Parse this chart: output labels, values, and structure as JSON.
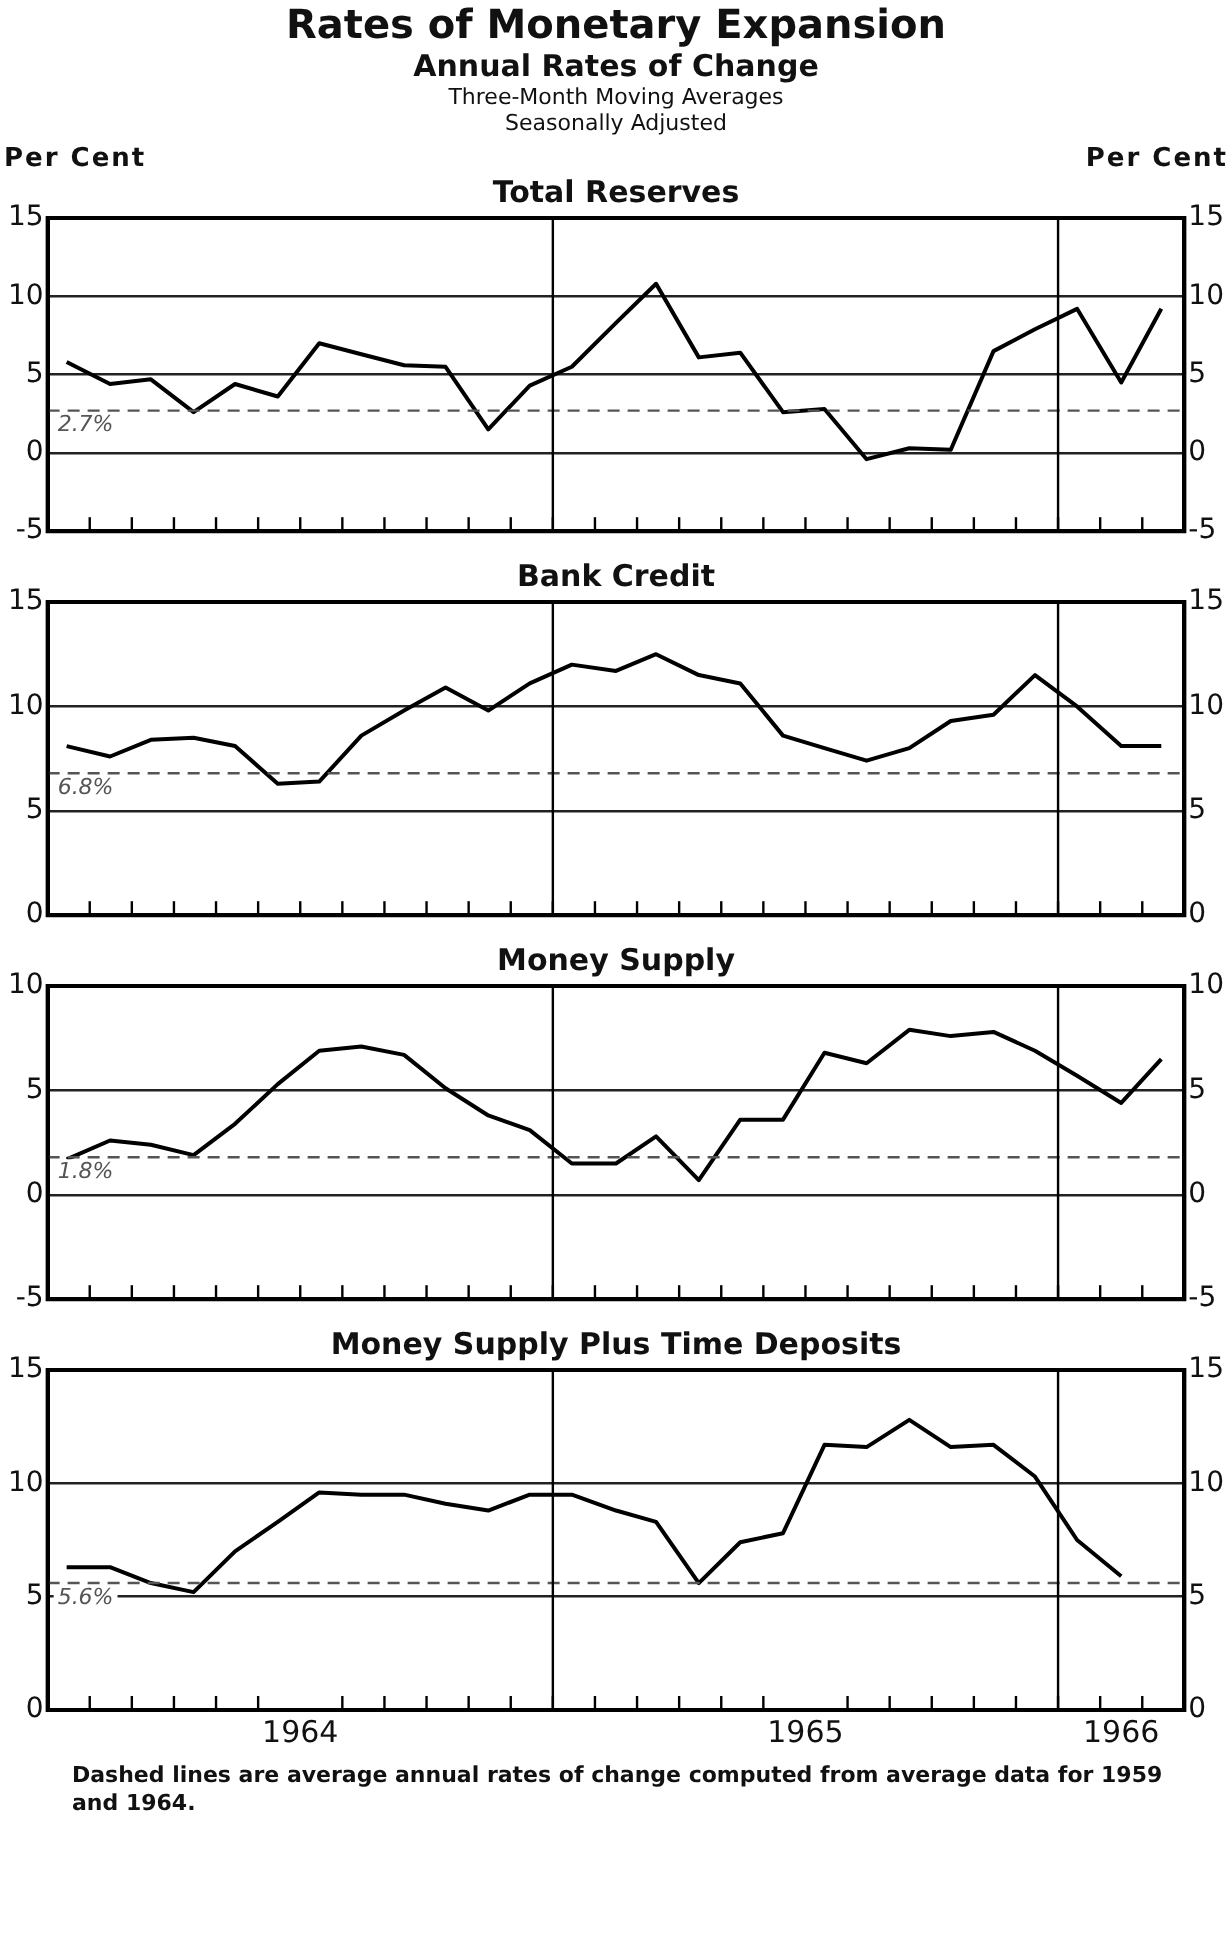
{
  "chart_data": [
    {
      "type": "other",
      "title": "Rates of Monetary Expansion",
      "subtitle": "Annual Rates of Change",
      "annotations": [
        "Three-Month Moving Averages",
        "Seasonally Adjusted"
      ]
    },
    {
      "type": "line",
      "title": "Total Reserves",
      "ylabel": "Per Cent",
      "y2label": "Per Cent",
      "x": [
        "1964-01-15",
        "1964-02-15",
        "1964-03-15",
        "1964-04-15",
        "1964-05-15",
        "1964-06-15",
        "1964-07-15",
        "1964-08-15",
        "1964-09-15",
        "1964-10-15",
        "1964-11-15",
        "1964-12-15",
        "1965-01-15",
        "1965-02-15",
        "1965-03-15",
        "1965-04-15",
        "1965-05-15",
        "1965-06-15",
        "1965-07-15",
        "1965-08-15",
        "1965-09-15",
        "1965-10-15",
        "1965-11-15",
        "1965-12-15",
        "1966-01-15",
        "1966-02-15",
        "1966-03-15"
      ],
      "series": [
        {
          "color": "#000000",
          "values": [
            5.8,
            4.4,
            4.7,
            2.6,
            4.4,
            3.6,
            7.0,
            6.3,
            5.6,
            5.5,
            1.5,
            4.3,
            5.5,
            8.3,
            10.8,
            6.1,
            6.4,
            2.6,
            2.8,
            -0.4,
            0.3,
            0.2,
            6.5,
            7.9,
            9.2,
            4.5,
            9.2
          ]
        }
      ],
      "xlim": [
        "1964-01-01",
        "1966-04-01"
      ],
      "xticks": [
        {
          "value": "1964-02-01",
          "label": null
        },
        {
          "value": "1964-03-01",
          "label": null
        },
        {
          "value": "1964-04-01",
          "label": null
        },
        {
          "value": "1964-05-01",
          "label": null
        },
        {
          "value": "1964-06-01",
          "label": null
        },
        {
          "value": "1964-07-01",
          "label": null
        },
        {
          "value": "1964-08-01",
          "label": null
        },
        {
          "value": "1964-09-01",
          "label": null
        },
        {
          "value": "1964-10-01",
          "label": null
        },
        {
          "value": "1964-11-01",
          "label": null
        },
        {
          "value": "1964-12-01",
          "label": null
        },
        {
          "value": "1965-01-01",
          "label": null
        },
        {
          "value": "1965-02-01",
          "label": null
        },
        {
          "value": "1965-03-01",
          "label": null
        },
        {
          "value": "1965-04-01",
          "label": null
        },
        {
          "value": "1965-05-01",
          "label": null
        },
        {
          "value": "1965-06-01",
          "label": null
        },
        {
          "value": "1965-07-01",
          "label": null
        },
        {
          "value": "1965-08-01",
          "label": null
        },
        {
          "value": "1965-09-01",
          "label": null
        },
        {
          "value": "1965-10-01",
          "label": null
        },
        {
          "value": "1965-11-01",
          "label": null
        },
        {
          "value": "1965-12-01",
          "label": null
        },
        {
          "value": "1966-01-01",
          "label": null
        },
        {
          "value": "1966-02-01",
          "label": null
        },
        {
          "value": "1966-03-01",
          "label": null
        }
      ],
      "ylim": [
        -5,
        15
      ],
      "yticks": [
        -5,
        0,
        5,
        10,
        15
      ],
      "y2lim": [
        -5,
        15
      ],
      "y2ticks": [
        -5,
        0,
        5,
        10,
        15
      ],
      "ref_lines": [
        {
          "axis": "y",
          "value": 2.7,
          "label": "2.7%",
          "line_style": "dashed"
        },
        {
          "axis": "x",
          "value": "1965-01-01",
          "label": null
        },
        {
          "axis": "x",
          "value": "1966-01-01",
          "label": null
        }
      ],
      "tick_labels": "y",
      "grid": "y",
      "legend": false,
      "marker": "none",
      "line_style": "solid"
    },
    {
      "type": "line",
      "title": "Bank Credit",
      "x": [
        "1964-01-15",
        "1964-02-15",
        "1964-03-15",
        "1964-04-15",
        "1964-05-15",
        "1964-06-15",
        "1964-07-15",
        "1964-08-15",
        "1964-09-15",
        "1964-10-15",
        "1964-11-15",
        "1964-12-15",
        "1965-01-15",
        "1965-02-15",
        "1965-03-15",
        "1965-04-15",
        "1965-05-15",
        "1965-06-15",
        "1965-07-15",
        "1965-08-15",
        "1965-09-15",
        "1965-10-15",
        "1965-11-15",
        "1965-12-15",
        "1966-01-15",
        "1966-02-15",
        "1966-03-15"
      ],
      "series": [
        {
          "color": "#000000",
          "values": [
            8.1,
            7.6,
            8.4,
            8.5,
            8.1,
            6.3,
            6.4,
            8.6,
            9.8,
            10.9,
            9.8,
            11.1,
            12.0,
            11.7,
            12.5,
            11.5,
            11.1,
            8.6,
            8.0,
            7.4,
            8.0,
            9.3,
            9.6,
            11.5,
            10.0,
            8.1,
            8.1
          ]
        }
      ],
      "xlim": [
        "1964-01-01",
        "1966-04-01"
      ],
      "xticks": [
        {
          "value": "1964-02-01",
          "label": null
        },
        {
          "value": "1964-03-01",
          "label": null
        },
        {
          "value": "1964-04-01",
          "label": null
        },
        {
          "value": "1964-05-01",
          "label": null
        },
        {
          "value": "1964-06-01",
          "label": null
        },
        {
          "value": "1964-07-01",
          "label": null
        },
        {
          "value": "1964-08-01",
          "label": null
        },
        {
          "value": "1964-09-01",
          "label": null
        },
        {
          "value": "1964-10-01",
          "label": null
        },
        {
          "value": "1964-11-01",
          "label": null
        },
        {
          "value": "1964-12-01",
          "label": null
        },
        {
          "value": "1965-01-01",
          "label": null
        },
        {
          "value": "1965-02-01",
          "label": null
        },
        {
          "value": "1965-03-01",
          "label": null
        },
        {
          "value": "1965-04-01",
          "label": null
        },
        {
          "value": "1965-05-01",
          "label": null
        },
        {
          "value": "1965-06-01",
          "label": null
        },
        {
          "value": "1965-07-01",
          "label": null
        },
        {
          "value": "1965-08-01",
          "label": null
        },
        {
          "value": "1965-09-01",
          "label": null
        },
        {
          "value": "1965-10-01",
          "label": null
        },
        {
          "value": "1965-11-01",
          "label": null
        },
        {
          "value": "1965-12-01",
          "label": null
        },
        {
          "value": "1966-01-01",
          "label": null
        },
        {
          "value": "1966-02-01",
          "label": null
        },
        {
          "value": "1966-03-01",
          "label": null
        }
      ],
      "ylim": [
        0,
        15
      ],
      "yticks": [
        0,
        5,
        10,
        15
      ],
      "y2lim": [
        0,
        15
      ],
      "y2ticks": [
        0,
        5,
        10,
        15
      ],
      "ref_lines": [
        {
          "axis": "y",
          "value": 6.8,
          "label": "6.8%",
          "line_style": "dashed"
        },
        {
          "axis": "x",
          "value": "1965-01-01",
          "label": null
        },
        {
          "axis": "x",
          "value": "1966-01-01",
          "label": null
        }
      ],
      "tick_labels": "y",
      "grid": "y",
      "legend": false,
      "marker": "none",
      "line_style": "solid"
    },
    {
      "type": "line",
      "title": "Money Supply",
      "x": [
        "1964-01-15",
        "1964-02-15",
        "1964-03-15",
        "1964-04-15",
        "1964-05-15",
        "1964-06-15",
        "1964-07-15",
        "1964-08-15",
        "1964-09-15",
        "1964-10-15",
        "1964-11-15",
        "1964-12-15",
        "1965-01-15",
        "1965-02-15",
        "1965-03-15",
        "1965-04-15",
        "1965-05-15",
        "1965-06-15",
        "1965-07-15",
        "1965-08-15",
        "1965-09-15",
        "1965-10-15",
        "1965-11-15",
        "1965-12-15",
        "1966-01-15",
        "1966-02-15",
        "1966-03-15"
      ],
      "series": [
        {
          "color": "#000000",
          "values": [
            1.7,
            2.6,
            2.4,
            1.9,
            3.4,
            5.3,
            6.9,
            7.1,
            6.7,
            5.1,
            3.8,
            3.1,
            1.5,
            1.5,
            2.8,
            0.7,
            3.6,
            3.6,
            6.8,
            6.3,
            7.9,
            7.6,
            7.8,
            6.9,
            5.7,
            4.4,
            6.5
          ]
        }
      ],
      "xlim": [
        "1964-01-01",
        "1966-04-01"
      ],
      "xticks": [
        {
          "value": "1964-02-01",
          "label": null
        },
        {
          "value": "1964-03-01",
          "label": null
        },
        {
          "value": "1964-04-01",
          "label": null
        },
        {
          "value": "1964-05-01",
          "label": null
        },
        {
          "value": "1964-06-01",
          "label": null
        },
        {
          "value": "1964-07-01",
          "label": null
        },
        {
          "value": "1964-08-01",
          "label": null
        },
        {
          "value": "1964-09-01",
          "label": null
        },
        {
          "value": "1964-10-01",
          "label": null
        },
        {
          "value": "1964-11-01",
          "label": null
        },
        {
          "value": "1964-12-01",
          "label": null
        },
        {
          "value": "1965-01-01",
          "label": null
        },
        {
          "value": "1965-02-01",
          "label": null
        },
        {
          "value": "1965-03-01",
          "label": null
        },
        {
          "value": "1965-04-01",
          "label": null
        },
        {
          "value": "1965-05-01",
          "label": null
        },
        {
          "value": "1965-06-01",
          "label": null
        },
        {
          "value": "1965-07-01",
          "label": null
        },
        {
          "value": "1965-08-01",
          "label": null
        },
        {
          "value": "1965-09-01",
          "label": null
        },
        {
          "value": "1965-10-01",
          "label": null
        },
        {
          "value": "1965-11-01",
          "label": null
        },
        {
          "value": "1965-12-01",
          "label": null
        },
        {
          "value": "1966-01-01",
          "label": null
        },
        {
          "value": "1966-02-01",
          "label": null
        },
        {
          "value": "1966-03-01",
          "label": null
        }
      ],
      "ylim": [
        -5,
        10
      ],
      "yticks": [
        -5,
        0,
        5,
        10
      ],
      "y2lim": [
        -5,
        10
      ],
      "y2ticks": [
        -5,
        0,
        5,
        10
      ],
      "ref_lines": [
        {
          "axis": "y",
          "value": 1.8,
          "label": "1.8%",
          "line_style": "dashed"
        },
        {
          "axis": "x",
          "value": "1965-01-01",
          "label": null
        },
        {
          "axis": "x",
          "value": "1966-01-01",
          "label": null
        }
      ],
      "tick_labels": "y",
      "grid": "y",
      "legend": false,
      "marker": "none",
      "line_style": "solid"
    },
    {
      "type": "line",
      "title": "Money Supply Plus Time Deposits",
      "series": [
        {
          "color": "#000000",
          "x": [
            "1964-01-15",
            "1964-02-15",
            "1964-03-15",
            "1964-04-15",
            "1964-05-15",
            "1964-06-15",
            "1964-07-15",
            "1964-08-15",
            "1964-09-15",
            "1964-10-15",
            "1964-11-15",
            "1964-12-15",
            "1965-01-15",
            "1965-02-15",
            "1965-03-15",
            "1965-04-15",
            "1965-05-15",
            "1965-06-15",
            "1965-07-15",
            "1965-08-15",
            "1965-09-15",
            "1965-10-15",
            "1965-11-15",
            "1965-12-15",
            "1966-01-15",
            "1966-02-15"
          ],
          "values": [
            6.3,
            6.3,
            5.6,
            5.2,
            7.0,
            8.3,
            9.6,
            9.5,
            9.5,
            9.1,
            8.8,
            9.5,
            9.5,
            8.8,
            8.3,
            5.6,
            7.4,
            7.8,
            11.7,
            11.6,
            12.8,
            11.6,
            11.7,
            10.3,
            7.5,
            5.9
          ]
        }
      ],
      "xlim": [
        "1964-01-01",
        "1966-04-01"
      ],
      "xticks": [
        {
          "value": "1964-02-01",
          "label": null
        },
        {
          "value": "1964-03-01",
          "label": null
        },
        {
          "value": "1964-04-01",
          "label": null
        },
        {
          "value": "1964-05-01",
          "label": null
        },
        {
          "value": "1964-06-01",
          "label": null
        },
        {
          "value": "1964-07-01",
          "label": "1964"
        },
        {
          "value": "1964-08-01",
          "label": null
        },
        {
          "value": "1964-09-01",
          "label": null
        },
        {
          "value": "1964-10-01",
          "label": null
        },
        {
          "value": "1964-11-01",
          "label": null
        },
        {
          "value": "1964-12-01",
          "label": null
        },
        {
          "value": "1965-01-01",
          "label": null
        },
        {
          "value": "1965-02-01",
          "label": null
        },
        {
          "value": "1965-03-01",
          "label": null
        },
        {
          "value": "1965-04-01",
          "label": null
        },
        {
          "value": "1965-05-01",
          "label": null
        },
        {
          "value": "1965-06-01",
          "label": null
        },
        {
          "value": "1965-07-01",
          "label": "1965"
        },
        {
          "value": "1965-08-01",
          "label": null
        },
        {
          "value": "1965-09-01",
          "label": null
        },
        {
          "value": "1965-10-01",
          "label": null
        },
        {
          "value": "1965-11-01",
          "label": null
        },
        {
          "value": "1965-12-01",
          "label": null
        },
        {
          "value": "1966-01-01",
          "label": null
        },
        {
          "value": "1966-02-01",
          "label": null
        },
        {
          "value": "1966-02-15",
          "label": "1966"
        },
        {
          "value": "1966-03-01",
          "label": null
        }
      ],
      "ylim": [
        0,
        15
      ],
      "yticks": [
        0,
        5,
        10,
        15
      ],
      "y2lim": [
        0,
        15
      ],
      "y2ticks": [
        0,
        5,
        10,
        15
      ],
      "ref_lines": [
        {
          "axis": "y",
          "value": 5.6,
          "label": "5.6%",
          "line_style": "dashed"
        },
        {
          "axis": "x",
          "value": "1965-01-01",
          "label": null
        },
        {
          "axis": "x",
          "value": "1966-01-01",
          "label": null
        }
      ],
      "annotations": [
        "Dashed lines are average annual rates of change computed from average data for 1959 and 1964."
      ],
      "grid": "y",
      "legend": false,
      "marker": "none",
      "line_style": "solid"
    }
  ]
}
